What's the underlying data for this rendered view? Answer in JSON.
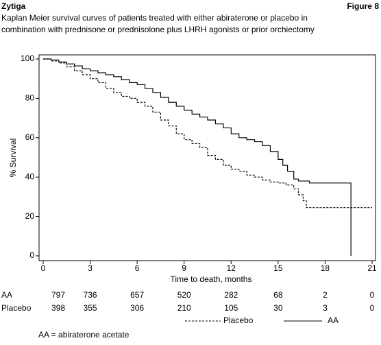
{
  "chart_data": {
    "type": "step-line",
    "title": "Zytiga",
    "figure_label": "Figure 8",
    "subtitle": [
      "Kaplan Meier survival curves of patients treated with either abiraterone or placebo in",
      "combination with prednisone or prednisolone plus LHRH agonists or prior orchiectomy"
    ],
    "x_label": "Time to death, months",
    "y_label": "% Survival",
    "xlim": [
      0,
      21
    ],
    "ylim": [
      0,
      100
    ],
    "xticks": [
      0,
      3,
      6,
      9,
      12,
      15,
      18,
      21
    ],
    "yticks": [
      0,
      20,
      40,
      60,
      80,
      100
    ],
    "series": [
      {
        "name": "Placebo",
        "color": "#000000",
        "dash": true,
        "x": [
          0,
          0.5,
          1,
          1.5,
          2,
          2.5,
          3,
          3.5,
          4,
          4.5,
          5,
          5.5,
          6,
          6.5,
          7,
          7.5,
          8,
          8.5,
          9,
          9.5,
          10,
          10.5,
          11,
          11.5,
          12,
          12.5,
          13,
          13.5,
          14,
          14.5,
          15,
          15.5,
          16,
          16.3,
          16.6,
          16.8,
          21
        ],
        "values": [
          100,
          99,
          98,
          96,
          94,
          92,
          90,
          88,
          85,
          83,
          81,
          80,
          78,
          76,
          73,
          69,
          66,
          62,
          59,
          57,
          55,
          51,
          49,
          46,
          44,
          43,
          41,
          40,
          38.5,
          37.5,
          37,
          36,
          34,
          31,
          28,
          24.5,
          24.5
        ]
      },
      {
        "name": "AA",
        "color": "#000000",
        "dash": false,
        "x": [
          0,
          0.5,
          1,
          1.5,
          2,
          2.5,
          3,
          3.5,
          4,
          4.5,
          5,
          5.5,
          6,
          6.5,
          7,
          7.5,
          8,
          8.5,
          9,
          9.5,
          10,
          10.5,
          11,
          11.5,
          12,
          12.5,
          13,
          13.5,
          14,
          14.5,
          15,
          15.3,
          15.6,
          16,
          16.3,
          17,
          19.65
        ],
        "values": [
          100,
          99.5,
          98.5,
          97.5,
          96.5,
          95,
          94,
          93,
          92,
          91,
          89.5,
          88,
          87,
          85,
          83,
          80.5,
          78,
          76,
          74,
          72,
          70.5,
          69,
          67,
          65,
          62,
          60,
          59,
          58,
          56,
          53,
          49,
          46,
          43,
          39,
          38,
          37,
          0
        ]
      }
    ],
    "risk_table": {
      "rows": [
        {
          "name": "AA",
          "values": [
            797,
            736,
            657,
            520,
            282,
            68,
            2,
            0
          ]
        },
        {
          "name": "Placebo",
          "values": [
            398,
            355,
            306,
            210,
            105,
            30,
            3,
            0
          ]
        }
      ]
    },
    "footnote": "AA = abiraterone acetate"
  }
}
